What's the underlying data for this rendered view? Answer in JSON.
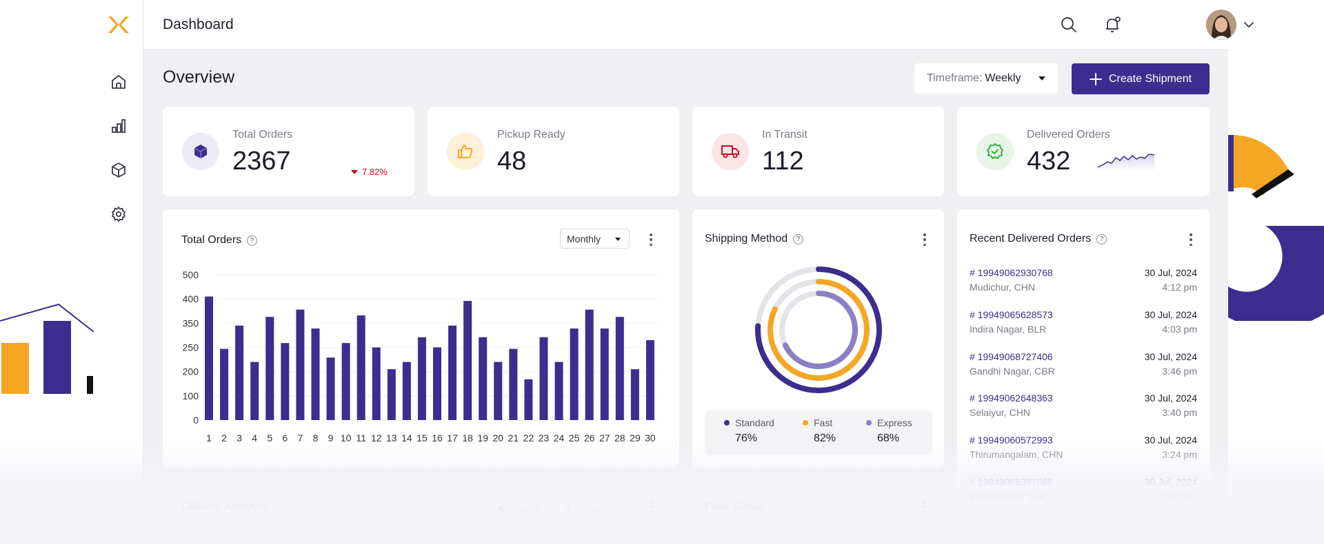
{
  "header": {
    "title": "Dashboard"
  },
  "sidebar": {
    "items": [
      {
        "name": "home",
        "icon": "home-icon"
      },
      {
        "name": "analytics",
        "icon": "bar-chart-icon"
      },
      {
        "name": "shipments",
        "icon": "box-icon"
      },
      {
        "name": "settings",
        "icon": "gear-icon"
      }
    ]
  },
  "overview": {
    "title": "Overview",
    "timeframe_label": "Timeframe:",
    "timeframe_value": "Weekly",
    "create_label": "Create Shipment"
  },
  "stats": [
    {
      "label": "Total Orders",
      "value": "2367",
      "trend": "7.82%",
      "icon": "cube-icon",
      "color": "#3d2d8f"
    },
    {
      "label": "Pickup Ready",
      "value": "48",
      "icon": "thumbs-up-icon",
      "color": "#f5a623"
    },
    {
      "label": "In Transit",
      "value": "112",
      "icon": "truck-icon",
      "color": "#d0021b"
    },
    {
      "label": "Delivered Orders",
      "value": "432",
      "icon": "check-badge-icon",
      "color": "#2eaa3c"
    }
  ],
  "total_orders": {
    "title": "Total Orders",
    "period": "Monthly"
  },
  "shipping_method": {
    "title": "Shipping Method",
    "methods": [
      {
        "name": "Standard",
        "pct": "76%",
        "value": 76,
        "color": "#3d2d8f"
      },
      {
        "name": "Fast",
        "pct": "82%",
        "value": 82,
        "color": "#f5a623"
      },
      {
        "name": "Express",
        "pct": "68%",
        "value": 68,
        "color": "#8c7fc4"
      }
    ]
  },
  "recent": {
    "title": "Recent Delivered Orders",
    "orders": [
      {
        "id": "# 19949062930768",
        "location": "Mudichur, CHN",
        "date": "30 Jul, 2024",
        "time": "4:12 pm"
      },
      {
        "id": "# 19949065628573",
        "location": "Indira Nagar, BLR",
        "date": "30 Jul, 2024",
        "time": "4:03 pm"
      },
      {
        "id": "# 19949068727406",
        "location": "Gandhi Nagar, CBR",
        "date": "30 Jul, 2024",
        "time": "3:46 pm"
      },
      {
        "id": "# 19949062648363",
        "location": "Selaiyur, CHN",
        "date": "30 Jul, 2024",
        "time": "3:40 pm"
      },
      {
        "id": "# 19949060572993",
        "location": "Thirumangalam, CHN",
        "date": "30 Jul, 2024",
        "time": "3:24 pm"
      },
      {
        "id": "# 19949065387568",
        "location": "Indira Nagar, BLR",
        "date": "30 Jul, 2024",
        "time": "3:02 pm"
      }
    ]
  },
  "delivery_analytics": {
    "title": "Delivery Analytics",
    "legend": [
      "Delayed",
      "Cancelled"
    ]
  },
  "fleet_status": {
    "title": "Fleet Status"
  },
  "chart_data": {
    "type": "bar",
    "categories": [
      "1",
      "2",
      "3",
      "4",
      "5",
      "6",
      "7",
      "8",
      "9",
      "10",
      "11",
      "12",
      "13",
      "14",
      "15",
      "16",
      "17",
      "18",
      "19",
      "20",
      "21",
      "22",
      "23",
      "24",
      "25",
      "26",
      "27",
      "28",
      "29",
      "30"
    ],
    "values": [
      425,
      245,
      325,
      200,
      355,
      265,
      380,
      315,
      215,
      265,
      360,
      250,
      175,
      200,
      285,
      250,
      325,
      410,
      285,
      200,
      245,
      140,
      285,
      200,
      315,
      380,
      315,
      355,
      175,
      275
    ],
    "yticks": [
      "0",
      "100",
      "200",
      "250",
      "350",
      "400",
      "500"
    ],
    "ylim": [
      0,
      500
    ],
    "color": "#3d2d8f"
  }
}
